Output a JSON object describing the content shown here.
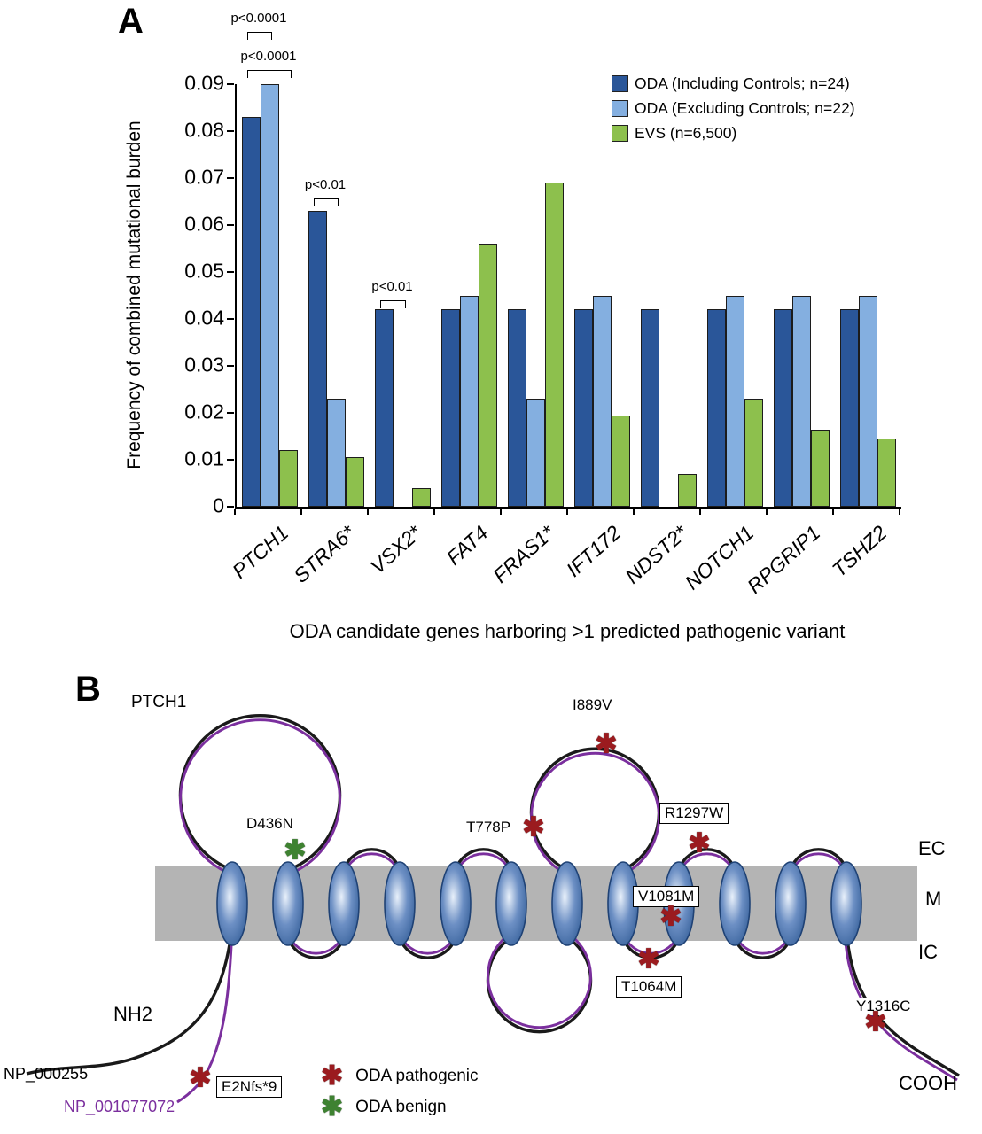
{
  "figure": {
    "panel_a_label": "A",
    "panel_b_label": "B"
  },
  "chart_data": {
    "type": "bar",
    "title": "",
    "ylabel": "Frequency of combined mutational burden",
    "xlabel": "ODA candidate genes harboring >1 predicted pathogenic variant",
    "ylim": [
      0,
      0.09
    ],
    "y_ticks": [
      "0",
      "0.01",
      "0.02",
      "0.03",
      "0.04",
      "0.05",
      "0.06",
      "0.07",
      "0.08",
      "0.09"
    ],
    "grid": false,
    "legend_position": "top-right",
    "categories": [
      "PTCH1",
      "STRA6*",
      "VSX2*",
      "FAT4",
      "FRAS1*",
      "IFT172",
      "NDST2*",
      "NOTCH1",
      "RPGRIP1",
      "TSHZ2"
    ],
    "series": [
      {
        "name": "ODA (Including Controls; n=24)",
        "color": "#2a5699",
        "values": [
          0.083,
          0.063,
          0.042,
          0.042,
          0.042,
          0.042,
          0.042,
          0.042,
          0.042,
          0.042
        ]
      },
      {
        "name": "ODA (Excluding Controls; n=22)",
        "color": "#84afe0",
        "values": [
          0.09,
          0.023,
          0,
          0.045,
          0.023,
          0.045,
          0,
          0.045,
          0.045,
          0.045
        ]
      },
      {
        "name": "EVS (n=6,500)",
        "color": "#8dc04d",
        "values": [
          0.012,
          0.0105,
          0.004,
          0.056,
          0.069,
          0.0195,
          0.007,
          0.023,
          0.0165,
          0.0145
        ]
      }
    ],
    "annotations": [
      {
        "text": "p<0.0001",
        "gene": "PTCH1"
      },
      {
        "text": "p<0.0001",
        "gene": "PTCH1"
      },
      {
        "text": "p<0.01",
        "gene": "STRA6*"
      },
      {
        "text": "p<0.01",
        "gene": "VSX2*"
      }
    ]
  },
  "panel_b": {
    "protein": "PTCH1",
    "region_labels": {
      "ec": "EC",
      "m": "M",
      "ic": "IC"
    },
    "terminus_labels": {
      "nh2": "NH2",
      "cooh": "COOH"
    },
    "isoforms": [
      {
        "name": "NP_000255",
        "color": "#1a1a1a"
      },
      {
        "name": "NP_001077072",
        "color": "#7b2f9e"
      }
    ],
    "mutations": [
      {
        "label": "D436N",
        "type": "benign",
        "boxed": false
      },
      {
        "label": "T778P",
        "type": "pathogenic",
        "boxed": false
      },
      {
        "label": "I889V",
        "type": "pathogenic",
        "boxed": false
      },
      {
        "label": "R1297W",
        "type": "pathogenic",
        "boxed": true
      },
      {
        "label": "V1081M",
        "type": "pathogenic",
        "boxed": true
      },
      {
        "label": "T1064M",
        "type": "pathogenic",
        "boxed": true
      },
      {
        "label": "Y1316C",
        "type": "pathogenic",
        "boxed": false
      },
      {
        "label": "E2Nfs*9",
        "type": "pathogenic",
        "boxed": true
      }
    ],
    "legend": [
      {
        "symbol": "asterisk-red",
        "label": "ODA pathogenic"
      },
      {
        "symbol": "asterisk-green",
        "label": "ODA benign"
      }
    ],
    "colors": {
      "pathogenic": "#9b1b1f",
      "benign": "#3e8231",
      "membrane": "#b4b4b4",
      "helix_stroke": "#1f4275",
      "backbone_black": "#1a1a1a"
    }
  }
}
